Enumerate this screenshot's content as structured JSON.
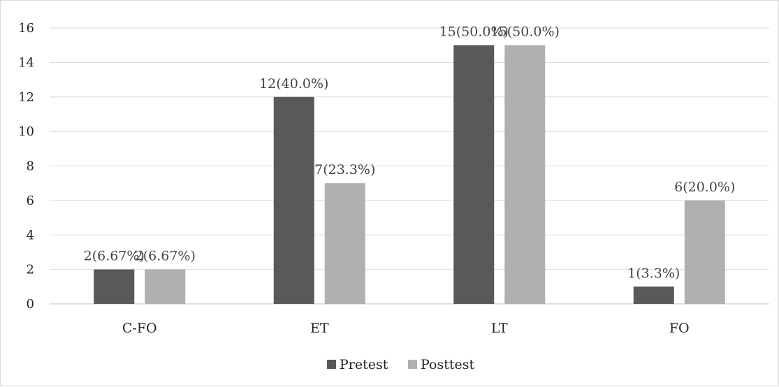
{
  "chart_data": {
    "type": "bar",
    "categories": [
      "C-FO",
      "ET",
      "LT",
      "FO"
    ],
    "series": [
      {
        "name": "Pretest",
        "color": "#595959",
        "values": [
          2,
          12,
          15,
          1
        ],
        "labels": [
          "2(6.67%)",
          "12(40.0%)",
          "15(50.0%)",
          "1(3.3%)"
        ]
      },
      {
        "name": "Posttest",
        "color": "#b0b0b0",
        "values": [
          2,
          7,
          15,
          6
        ],
        "labels": [
          "2(6.67%)",
          "7(23.3%)",
          "15(50.0%)",
          "6(20.0%)"
        ]
      }
    ],
    "ylim": [
      0,
      16
    ],
    "yticks": [
      "0",
      "2",
      "4",
      "6",
      "8",
      "10",
      "12",
      "14",
      "16"
    ],
    "grid": true,
    "legend_position": "bottom",
    "title": "",
    "xlabel": "",
    "ylabel": ""
  }
}
